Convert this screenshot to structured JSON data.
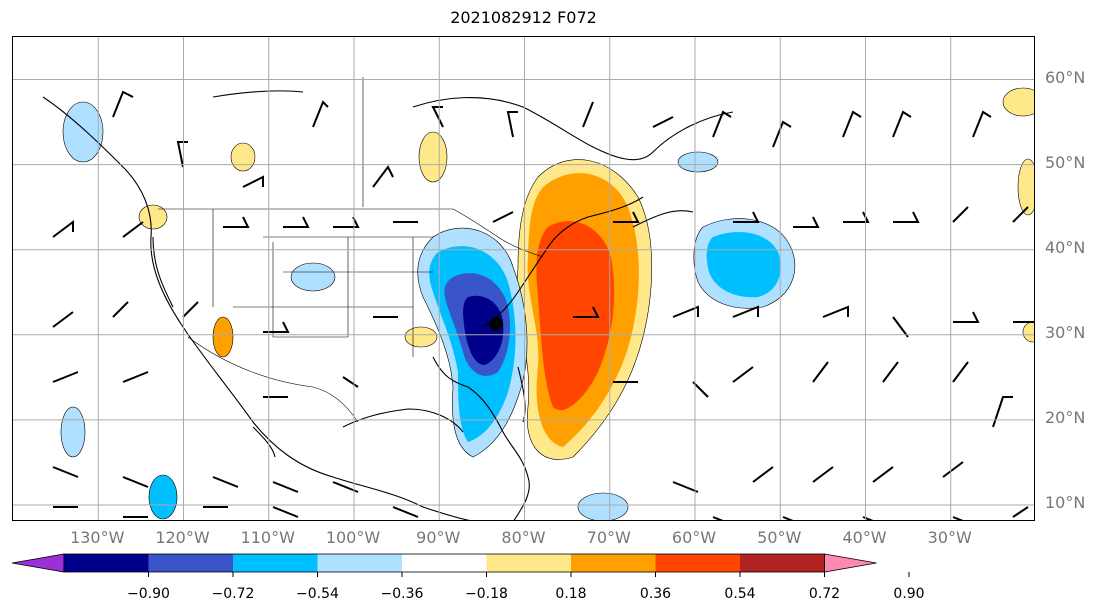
{
  "title": "2021082912 F072",
  "map": {
    "lon_range": [
      -140,
      -20
    ],
    "lat_range": [
      8,
      65
    ],
    "lat_labels": [
      {
        "lat": 60,
        "text": "60°N"
      },
      {
        "lat": 50,
        "text": "50°N"
      },
      {
        "lat": 40,
        "text": "40°N"
      },
      {
        "lat": 30,
        "text": "30°N"
      },
      {
        "lat": 20,
        "text": "20°N"
      },
      {
        "lat": 10,
        "text": "10°N"
      }
    ],
    "lon_labels": [
      {
        "lon": -130,
        "text": "130°W"
      },
      {
        "lon": -120,
        "text": "120°W"
      },
      {
        "lon": -110,
        "text": "110°W"
      },
      {
        "lon": -100,
        "text": "100°W"
      },
      {
        "lon": -90,
        "text": "90°W"
      },
      {
        "lon": -80,
        "text": "80°W"
      },
      {
        "lon": -70,
        "text": "70°W"
      },
      {
        "lon": -60,
        "text": "60°W"
      },
      {
        "lon": -50,
        "text": "50°W"
      },
      {
        "lon": -40,
        "text": "40°W"
      },
      {
        "lon": -30,
        "text": "30°W"
      }
    ],
    "gridline_color": "#aaaaaa"
  },
  "colorbar": {
    "colors": [
      "#9b30d9",
      "#00008b",
      "#3a55c8",
      "#00bfff",
      "#b0e0ff",
      "#ffffff",
      "#ffe88a",
      "#ff9f00",
      "#ff4500",
      "#b22222",
      "#ff88b4"
    ],
    "labels": [
      "−0.90",
      "−0.72",
      "−0.54",
      "−0.36",
      "−0.18",
      "0.18",
      "0.36",
      "0.54",
      "0.72",
      "0.90"
    ]
  }
}
